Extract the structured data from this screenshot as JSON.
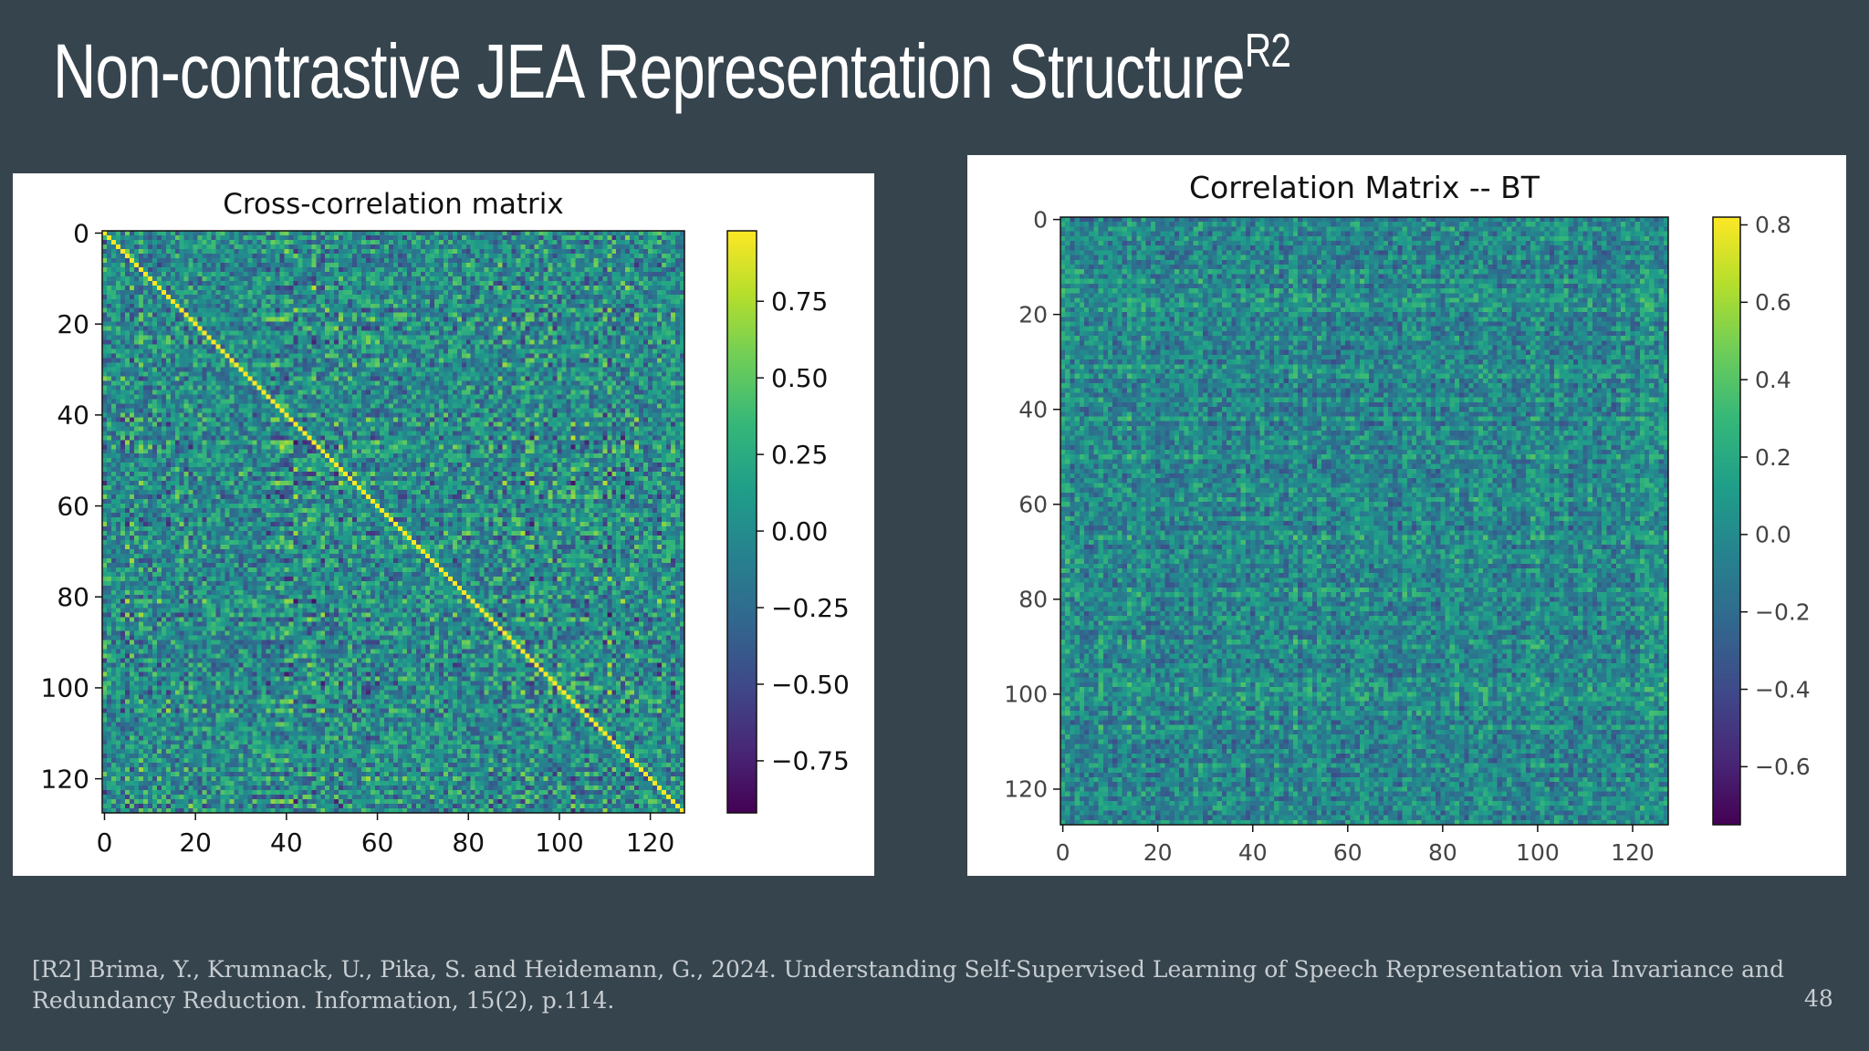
{
  "slide": {
    "title": "Non-contrastive JEA Representation Structure",
    "title_sup": "R2",
    "footnote": "[R2] Brima, Y., Krumnack, U., Pika, S. and Heidemann, G., 2024. Understanding Self-Supervised Learning of Speech Representation via Invariance and Redundancy Reduction. Information, 15(2), p.114.",
    "page_number": "48",
    "background_color": "#36444d"
  },
  "chart_data": [
    {
      "type": "heatmap",
      "title": "Cross-correlation matrix",
      "size": 128,
      "diagonal": 1.0,
      "x_ticks": [
        "0",
        "20",
        "40",
        "60",
        "80",
        "100",
        "120"
      ],
      "y_ticks": [
        "0",
        "20",
        "40",
        "60",
        "80",
        "100",
        "120"
      ],
      "xlim": [
        0,
        127
      ],
      "ylim": [
        0,
        127
      ],
      "colorbar": {
        "range": [
          -0.92,
          0.98
        ],
        "ticks": [
          "0.75",
          "0.50",
          "0.25",
          "0.00",
          "−0.25",
          "−0.50",
          "−0.75"
        ],
        "tick_values": [
          0.75,
          0.5,
          0.25,
          0.0,
          -0.25,
          -0.5,
          -0.75
        ]
      },
      "colormap": "viridis",
      "off_diagonal_range": [
        -0.9,
        0.9
      ]
    },
    {
      "type": "heatmap",
      "title": "Correlation Matrix -- BT",
      "size": 128,
      "diagonal": 0.1,
      "x_ticks": [
        "0",
        "20",
        "40",
        "60",
        "80",
        "100",
        "120"
      ],
      "y_ticks": [
        "0",
        "20",
        "40",
        "60",
        "80",
        "100",
        "120"
      ],
      "xlim": [
        0,
        127
      ],
      "ylim": [
        0,
        127
      ],
      "colorbar": {
        "range": [
          -0.75,
          0.82
        ],
        "ticks": [
          "0.8",
          "0.6",
          "0.4",
          "0.2",
          "0.0",
          "−0.2",
          "−0.4",
          "−0.6"
        ],
        "tick_values": [
          0.8,
          0.6,
          0.4,
          0.2,
          0.0,
          -0.2,
          -0.4,
          -0.6
        ]
      },
      "colormap": "viridis",
      "off_diagonal_range": [
        -0.5,
        0.5
      ]
    }
  ]
}
